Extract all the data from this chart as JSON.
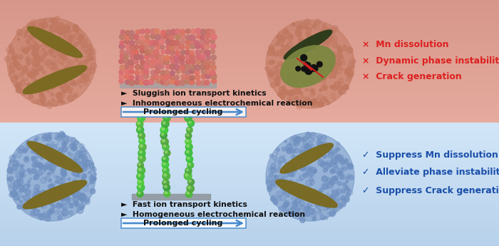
{
  "top_bullet1": "►  Sluggish ion transport kinetics",
  "top_bullet2": "►  Inhomogeneous electrochemical reaction",
  "top_arrow_label": "Prolonged cycling",
  "top_right1": "×  Mn dissolution",
  "top_right2": "×  Dynamic phase instability",
  "top_right3": "×  Crack generation",
  "bottom_bullet1": "►  Fast ion transport kinetics",
  "bottom_bullet2": "►  Homogeneous electrochemical reaction",
  "bottom_arrow_label": "Prolonged cycling",
  "bottom_right1": "✓  Suppress Mn dissolution",
  "bottom_right2": "✓  Alleviate phase instability",
  "bottom_right3": "✓  Suppress Crack generation",
  "red_color": "#dd2020",
  "blue_color": "#1a4faa",
  "black_text": "#101010",
  "disk_color": "#7a6a20",
  "top_sphere_color1": "#c07860",
  "top_sphere_color2": "#b06850",
  "bot_sphere_color1": "#7090c0",
  "bot_sphere_color2": "#5878a8"
}
